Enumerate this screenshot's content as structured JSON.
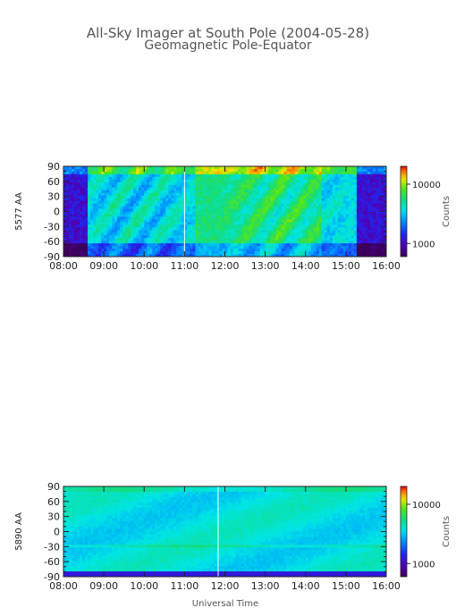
{
  "title": "All-Sky Imager at South Pole (2004-05-28)",
  "subtitle": "Geomagnetic Pole-Equator",
  "xlabel": "Universal Time",
  "chart_data": [
    {
      "type": "heatmap",
      "ylabel": "5577 AA",
      "colorbar_label": "Counts",
      "colorbar_ticks": [
        "10000",
        "1000"
      ],
      "x_ticks": [
        "08:00",
        "09:00",
        "10:00",
        "11:00",
        "12:00",
        "13:00",
        "14:00",
        "15:00",
        "16:00"
      ],
      "y_ticks": [
        "90",
        "60",
        "30",
        "0",
        "-30",
        "-60",
        "-90"
      ],
      "xlim": [
        "08:00",
        "16:00"
      ],
      "ylim": [
        -90,
        90
      ],
      "colorbar_range": [
        600,
        20000
      ],
      "colorscale": "log",
      "marker_time": "11:00",
      "grid": false
    },
    {
      "type": "heatmap",
      "ylabel": "5890 AA",
      "colorbar_label": "Counts",
      "colorbar_ticks": [
        "10000",
        "1000"
      ],
      "x_ticks": [
        "08:00",
        "09:00",
        "10:00",
        "11:00",
        "12:00",
        "13:00",
        "14:00",
        "15:00",
        "16:00"
      ],
      "y_ticks": [
        "90",
        "60",
        "30",
        "0",
        "-30",
        "-60",
        "-90"
      ],
      "xlim": [
        "08:00",
        "16:00"
      ],
      "ylim": [
        -90,
        90
      ],
      "colorbar_range": [
        600,
        20000
      ],
      "colorscale": "log",
      "marker_time": "11:50",
      "grid": false
    }
  ]
}
